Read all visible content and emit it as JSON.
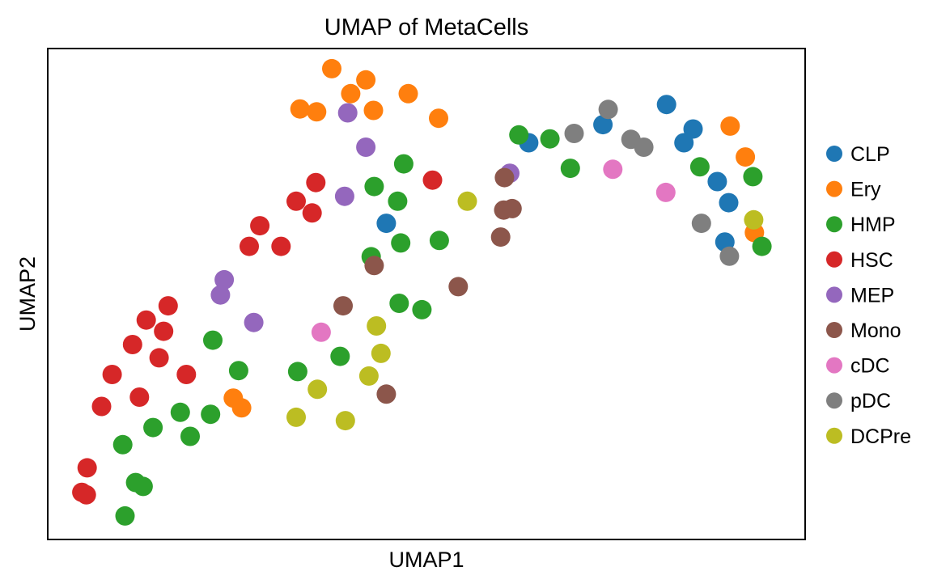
{
  "chart_data": {
    "type": "scatter",
    "title": "UMAP of MetaCells",
    "xlabel": "UMAP1",
    "ylabel": "UMAP2",
    "xlim": [
      0,
      100
    ],
    "ylim": [
      0,
      100
    ],
    "axis_ticks": "none",
    "grid": false,
    "legend_placement": "right",
    "series": [
      {
        "name": "CLP",
        "color": "#1f77b4",
        "points": [
          [
            81.7,
            88.6
          ],
          [
            73.3,
            84.5
          ],
          [
            85.2,
            83.6
          ],
          [
            84.0,
            80.8
          ],
          [
            63.5,
            80.8
          ],
          [
            88.4,
            72.9
          ],
          [
            89.9,
            68.6
          ],
          [
            44.7,
            64.4
          ],
          [
            89.4,
            60.6
          ]
        ]
      },
      {
        "name": "Ery",
        "color": "#ff7f0e",
        "points": [
          [
            37.5,
            95.9
          ],
          [
            42.0,
            93.6
          ],
          [
            40.0,
            90.8
          ],
          [
            47.6,
            90.8
          ],
          [
            33.3,
            87.7
          ],
          [
            35.5,
            87.1
          ],
          [
            43.0,
            87.4
          ],
          [
            51.6,
            85.8
          ],
          [
            90.1,
            84.2
          ],
          [
            92.1,
            77.9
          ],
          [
            93.3,
            62.5
          ],
          [
            24.5,
            28.8
          ],
          [
            25.6,
            26.8
          ]
        ]
      },
      {
        "name": "HMP",
        "color": "#2ca02c",
        "points": [
          [
            62.2,
            82.4
          ],
          [
            66.3,
            81.6
          ],
          [
            86.1,
            75.9
          ],
          [
            69.0,
            75.6
          ],
          [
            93.1,
            73.9
          ],
          [
            47.0,
            76.5
          ],
          [
            43.1,
            71.9
          ],
          [
            46.2,
            68.9
          ],
          [
            94.3,
            59.7
          ],
          [
            46.6,
            60.4
          ],
          [
            51.7,
            60.9
          ],
          [
            42.7,
            57.6
          ],
          [
            46.4,
            48.1
          ],
          [
            49.4,
            46.8
          ],
          [
            21.8,
            40.6
          ],
          [
            38.6,
            37.3
          ],
          [
            25.2,
            34.4
          ],
          [
            33.0,
            34.2
          ],
          [
            17.5,
            25.9
          ],
          [
            21.5,
            25.5
          ],
          [
            13.9,
            22.8
          ],
          [
            18.8,
            21.0
          ],
          [
            9.9,
            19.3
          ],
          [
            11.6,
            11.6
          ],
          [
            12.6,
            10.8
          ],
          [
            10.2,
            4.8
          ]
        ]
      },
      {
        "name": "HSC",
        "color": "#d62728",
        "points": [
          [
            35.4,
            72.7
          ],
          [
            50.8,
            73.2
          ],
          [
            32.8,
            68.9
          ],
          [
            34.9,
            66.5
          ],
          [
            28.0,
            63.9
          ],
          [
            26.6,
            59.7
          ],
          [
            30.8,
            59.7
          ],
          [
            15.9,
            47.6
          ],
          [
            13.0,
            44.7
          ],
          [
            15.3,
            42.4
          ],
          [
            11.2,
            39.7
          ],
          [
            14.7,
            37.0
          ],
          [
            18.3,
            33.6
          ],
          [
            8.5,
            33.6
          ],
          [
            12.1,
            29.0
          ],
          [
            7.1,
            27.1
          ],
          [
            5.2,
            14.6
          ],
          [
            4.5,
            9.6
          ],
          [
            5.1,
            9.1
          ]
        ]
      },
      {
        "name": "MEP",
        "color": "#9467bd",
        "points": [
          [
            39.6,
            86.9
          ],
          [
            42.0,
            79.9
          ],
          [
            61.0,
            74.6
          ],
          [
            39.2,
            69.9
          ],
          [
            23.3,
            52.9
          ],
          [
            22.8,
            49.8
          ],
          [
            27.2,
            44.2
          ]
        ]
      },
      {
        "name": "Mono",
        "color": "#8c564b",
        "points": [
          [
            60.3,
            73.7
          ],
          [
            60.2,
            67.1
          ],
          [
            61.3,
            67.4
          ],
          [
            59.8,
            61.6
          ],
          [
            43.1,
            55.8
          ],
          [
            54.2,
            51.5
          ],
          [
            39.0,
            47.6
          ],
          [
            44.7,
            29.6
          ]
        ]
      },
      {
        "name": "cDC",
        "color": "#e377c2",
        "points": [
          [
            74.6,
            75.4
          ],
          [
            81.6,
            70.7
          ],
          [
            36.1,
            42.2
          ]
        ]
      },
      {
        "name": "pDC",
        "color": "#7f7f7f",
        "points": [
          [
            74.0,
            87.6
          ],
          [
            69.5,
            82.7
          ],
          [
            77.0,
            81.5
          ],
          [
            78.7,
            79.9
          ],
          [
            86.3,
            64.4
          ],
          [
            90.0,
            57.7
          ]
        ]
      },
      {
        "name": "DCPre",
        "color": "#bcbd22",
        "points": [
          [
            55.4,
            68.9
          ],
          [
            93.2,
            65.1
          ],
          [
            43.4,
            43.5
          ],
          [
            44.0,
            37.9
          ],
          [
            42.4,
            33.3
          ],
          [
            35.6,
            30.6
          ],
          [
            32.8,
            24.9
          ],
          [
            39.3,
            24.2
          ]
        ]
      }
    ]
  }
}
